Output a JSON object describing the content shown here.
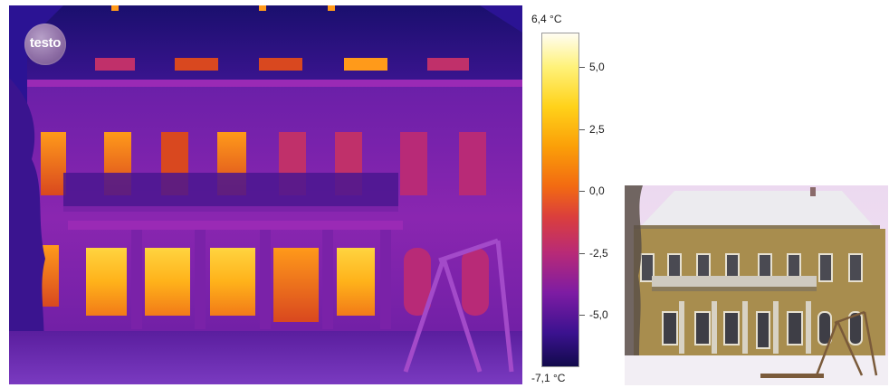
{
  "logo": {
    "text": "testo"
  },
  "scale": {
    "max_label": "6,4 °C",
    "min_label": "-7,1 °C",
    "ticks": [
      {
        "value": 5.0,
        "label": "5,0"
      },
      {
        "value": 2.5,
        "label": "2,5"
      },
      {
        "value": 0.0,
        "label": "0,0"
      },
      {
        "value": -2.5,
        "label": "-2,5"
      },
      {
        "value": -5.0,
        "label": "-5,0"
      }
    ],
    "range_min": -7.1,
    "range_max": 6.4
  },
  "colors": {
    "cold": "#120a4c",
    "cool": "#3b128f",
    "mid": "#b82a77",
    "warm": "#f26a12",
    "hot": "#ffd21a",
    "max": "#fffdf2"
  }
}
